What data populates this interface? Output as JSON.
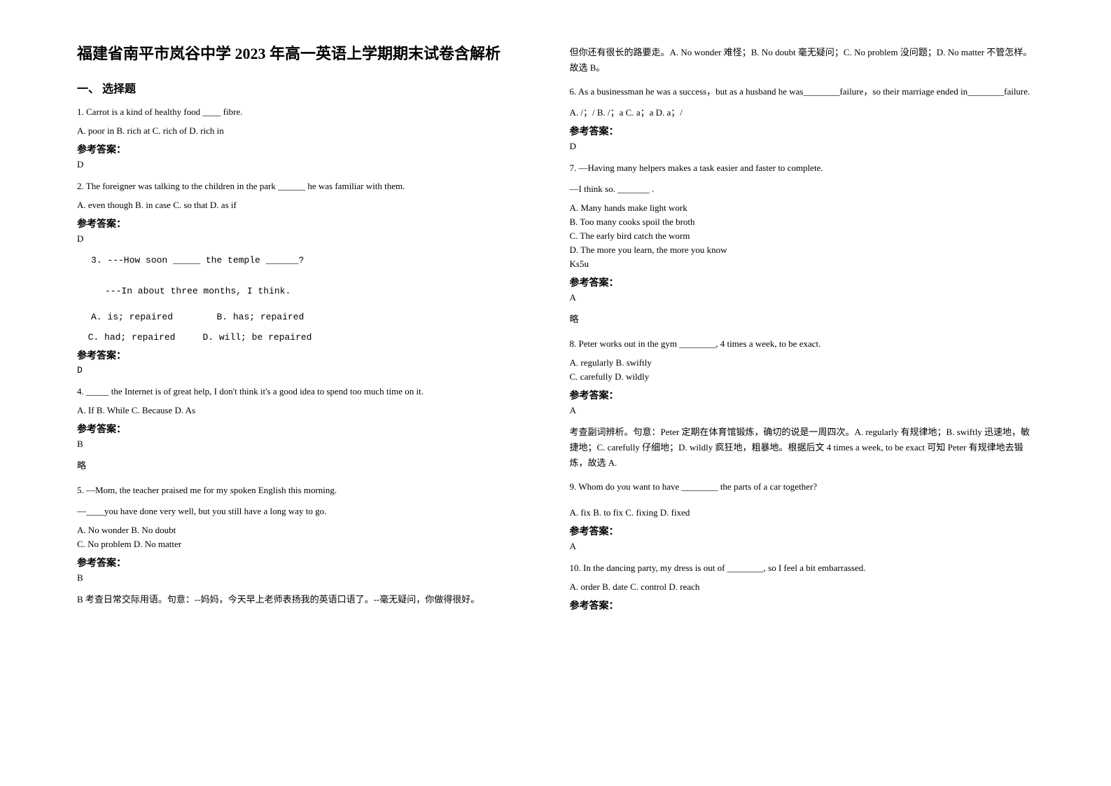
{
  "title": "福建省南平市岚谷中学 2023 年高一英语上学期期末试卷含解析",
  "section1_header": "一、 选择题",
  "q1": {
    "text": "1. Carrot is a kind of healthy food ____ fibre.",
    "options": "A. poor in   B. rich at   C. rich of       D. rich in",
    "answer_label": "参考答案：",
    "answer": "D"
  },
  "q2": {
    "text": "2. The foreigner was talking to the children in the park ______ he was familiar with them.",
    "options": "  A. even though   B. in case   C. so that   D. as if",
    "answer_label": "参考答案：",
    "answer": "D"
  },
  "q3": {
    "line1": "3. ---How soon _____ the temple ______?",
    "line2": "---In about three months, I think.",
    "optA": "A. is; repaired",
    "optB": "B. has; repaired",
    "optC": "C. had; repaired",
    "optD": "D. will; be repaired",
    "answer_label": "参考答案：",
    "answer": "D"
  },
  "q4": {
    "text": "4. _____ the Internet is of great help, I don't think it's a good idea to spend too much time on it.",
    "options": "   A. If    B. While    C. Because   D. As",
    "answer_label": "参考答案：",
    "answer": "B",
    "note": "略"
  },
  "q5": {
    "line1": "5. —Mom, the teacher praised me for my spoken English this morning.",
    "line2": "—____you have done very well, but you still have a long way to go.",
    "optA": "A. No wonder    B. No doubt",
    "optC": "C. No problem    D. No matter",
    "answer_label": "参考答案：",
    "answer": "B",
    "explanation1": "B 考查日常交际用语。句意：--妈妈，今天早上老师表扬我的英语口语了。--毫无疑问，你做得很好。",
    "explanation2": "但你还有很长的路要走。A. No wonder 难怪；B. No doubt 毫无疑问；C. No problem 没问题；D. No matter 不管怎样。故选 B。"
  },
  "q6": {
    "text": "6. As a businessman he was a success，but as a husband he was________failure，so their marriage ended in________failure.",
    "options": "A. /；/            B. /；a    C. a；a      D. a；/",
    "answer_label": "参考答案：",
    "answer": "D"
  },
  "q7": {
    "line1": "7. —Having many helpers makes a task easier and faster to complete.",
    "line2": "   —I think so. _______ .",
    "optA": "      A. Many hands make light work",
    "optB": "      B. Too many cooks spoil the broth",
    "optC": "      C. The early bird catch the worm",
    "optD": "      D. The more you learn, the more you know",
    "ks": "       Ks5u",
    "answer_label": "参考答案：",
    "answer": "A",
    "note": "略"
  },
  "q8": {
    "text": "8. Peter works out in the gym ________, 4 times a week, to be exact.",
    "optA": "A. regularly    B. swiftly",
    "optC": "C. carefully    D. wildly",
    "answer_label": "参考答案：",
    "answer": "A",
    "explanation": "考查副词辨析。句意：Peter 定期在体育馆锻炼，确切的说是一周四次。A. regularly 有规律地；B. swiftly 迅速地，敏捷地；C. carefully 仔细地；D. wildly 疯狂地，粗暴地。根据后文 4 times a week, to be exact 可知 Peter 有规律地去锻炼，故选 A."
  },
  "q9": {
    "text": "9. Whom do you want to have ________ the parts of a car together?",
    "options": "A. fix                    B. to fix                C. fixing               D. fixed",
    "answer_label": "参考答案：",
    "answer": "A"
  },
  "q10": {
    "text": "10. In the dancing party, my dress is out of ________, so I feel a bit embarrassed.",
    "options": "A. order          B. date   C. control        D. reach",
    "answer_label": "参考答案："
  }
}
